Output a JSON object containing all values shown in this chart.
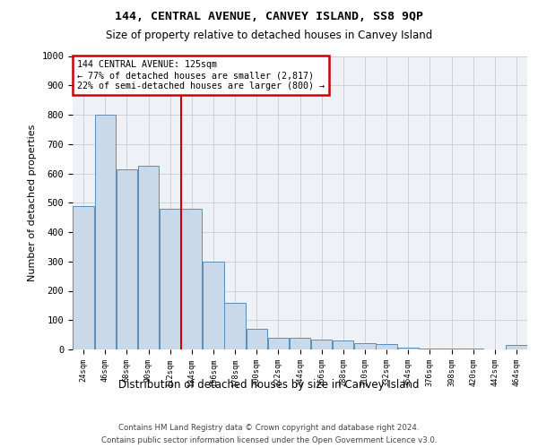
{
  "title1": "144, CENTRAL AVENUE, CANVEY ISLAND, SS8 9QP",
  "title2": "Size of property relative to detached houses in Canvey Island",
  "xlabel": "Distribution of detached houses by size in Canvey Island",
  "ylabel": "Number of detached properties",
  "footer1": "Contains HM Land Registry data © Crown copyright and database right 2024.",
  "footer2": "Contains public sector information licensed under the Open Government Licence v3.0.",
  "annotation_title": "144 CENTRAL AVENUE: 125sqm",
  "annotation_line1": "← 77% of detached houses are smaller (2,817)",
  "annotation_line2": "22% of semi-detached houses are larger (800) →",
  "property_size": 125,
  "bar_bins": [
    24,
    46,
    68,
    90,
    112,
    134,
    156,
    178,
    200,
    222,
    244,
    266,
    288,
    310,
    332,
    354,
    376,
    398,
    420,
    442,
    464
  ],
  "bar_values": [
    490,
    800,
    615,
    625,
    480,
    480,
    300,
    160,
    70,
    40,
    40,
    35,
    30,
    20,
    18,
    5,
    4,
    2,
    2,
    0,
    14
  ],
  "bar_color": "#c9d9e9",
  "bar_edge_color": "#5b8db8",
  "vline_color": "#cc0000",
  "vline_x": 125,
  "annotation_box_color": "#cc0000",
  "ylim": [
    0,
    1000
  ],
  "xlim": [
    24,
    486
  ],
  "bg_color": "#eef2f7",
  "grid_color": "#c8cdd4"
}
